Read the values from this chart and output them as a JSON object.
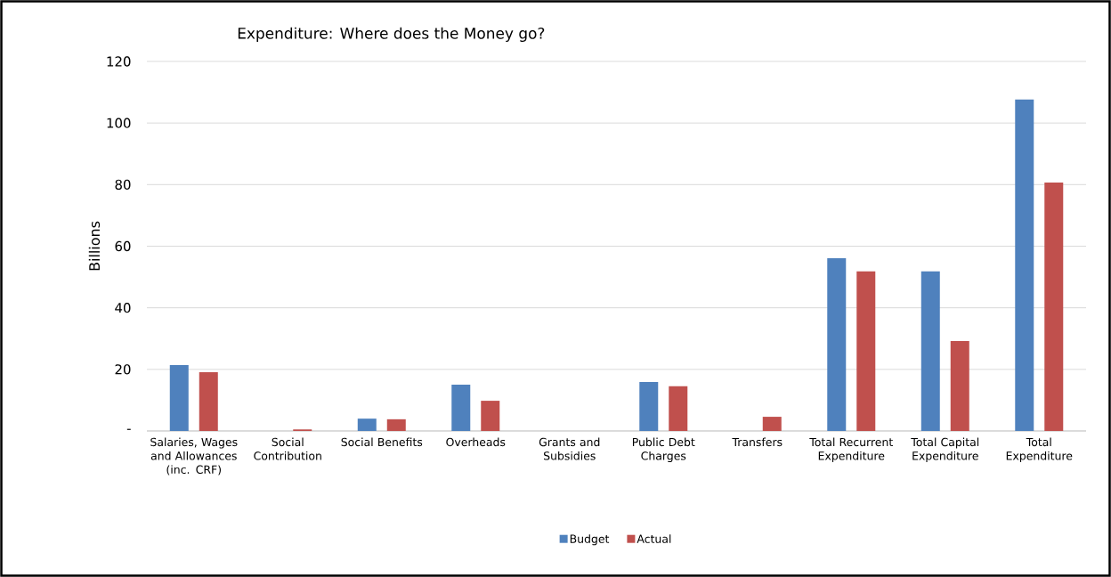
{
  "chart_data": {
    "type": "bar",
    "title": "Expenditure: Where does the Money go?",
    "ylabel": "Billions",
    "categories": [
      "Salaries, Wages and Allowances (inc. CRF)",
      "Social Contribution",
      "Social Benefits",
      "Overheads",
      "Grants and Subsidies",
      "Public Debt Charges",
      "Transfers",
      "Total Recurrent Expenditure",
      "Total Capital Expenditure",
      "Total Expenditure"
    ],
    "series": [
      {
        "name": "Budget",
        "color": "#4f81bd",
        "values": [
          21.4,
          0,
          4.0,
          15.0,
          0,
          15.9,
          0,
          56.1,
          51.8,
          107.6
        ]
      },
      {
        "name": "Actual",
        "color": "#c0504d",
        "values": [
          19.1,
          0.5,
          3.8,
          9.8,
          0,
          14.5,
          4.6,
          51.8,
          29.2,
          80.7
        ]
      }
    ],
    "ylim": [
      0,
      120
    ],
    "yticks": [
      {
        "value": 0,
        "label": "-"
      },
      20,
      40,
      60,
      80,
      100,
      120
    ],
    "grid": "y",
    "legend": "bottom"
  }
}
